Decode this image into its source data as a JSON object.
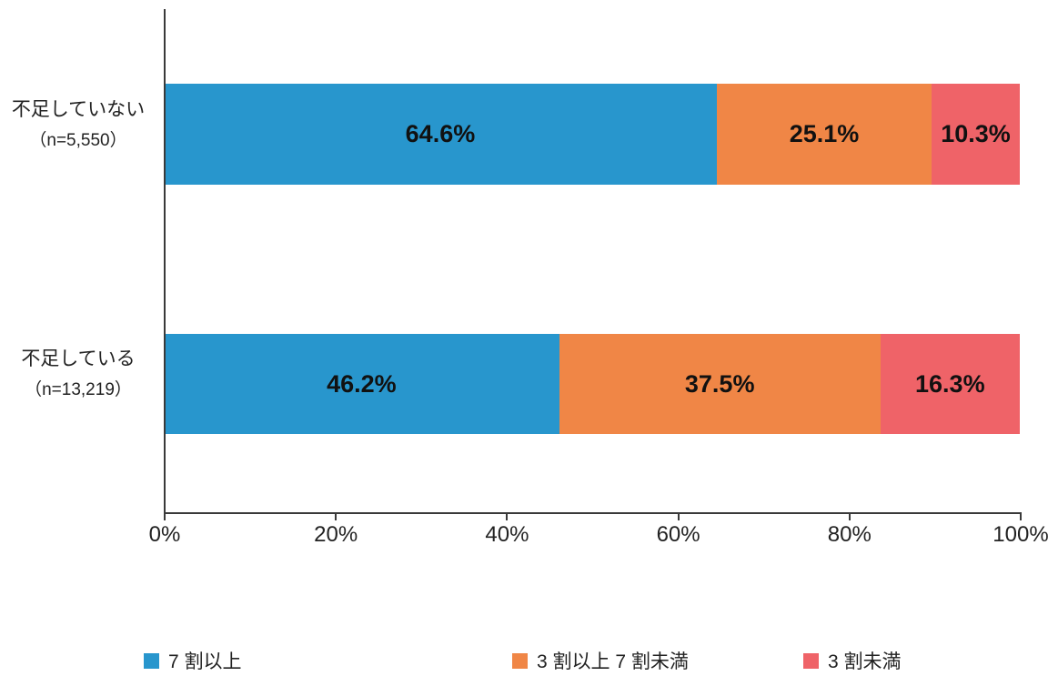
{
  "chart_data": {
    "type": "bar",
    "orientation": "horizontal",
    "stacked": true,
    "title": "",
    "xlabel": "",
    "ylabel": "",
    "xlim": [
      0,
      100
    ],
    "x_ticks": [
      "0%",
      "20%",
      "40%",
      "60%",
      "80%",
      "100%"
    ],
    "grid": false,
    "legend_position": "bottom",
    "categories": [
      {
        "label": "不足していない",
        "n_label": "（n=5,550）"
      },
      {
        "label": "不足している",
        "n_label": "（n=13,219）"
      }
    ],
    "series": [
      {
        "name": "7 割以上",
        "color": "#2896CD",
        "values": [
          64.6,
          46.2
        ]
      },
      {
        "name": "3 割以上 7 割未満",
        "color": "#F08646",
        "values": [
          25.1,
          37.5
        ]
      },
      {
        "name": "3 割未満",
        "color": "#EF6368",
        "values": [
          10.3,
          16.3
        ]
      }
    ],
    "data_labels": [
      [
        "64.6%",
        "25.1%",
        "10.3%"
      ],
      [
        "46.2%",
        "37.5%",
        "16.3%"
      ]
    ],
    "colors": {
      "axis": "#3a3a3a",
      "label_text": "#111111"
    }
  }
}
